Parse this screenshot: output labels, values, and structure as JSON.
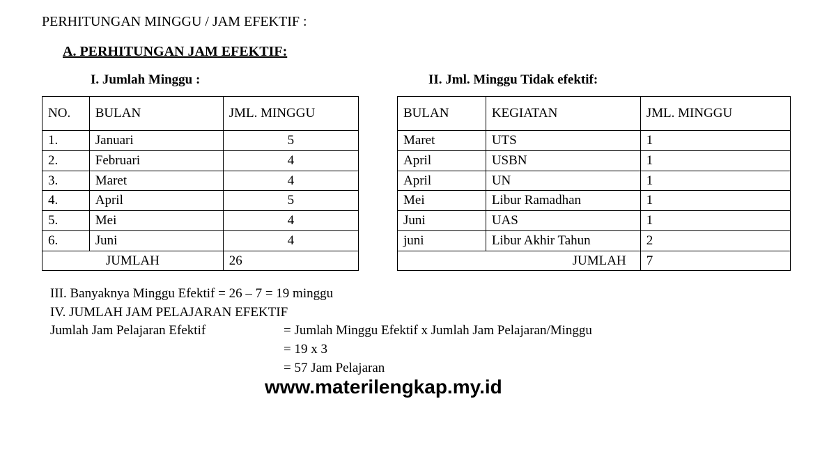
{
  "title": "PERHITUNGAN MINGGU / JAM EFEKTIF :",
  "sectionA": "A.    PERHITUNGAN JAM EFEKTIF:",
  "sub1": "I.   Jumlah Minggu        :",
  "sub2": "II. Jml. Minggu Tidak efektif:",
  "table1": {
    "headers": [
      "NO.",
      "BULAN",
      "JML. MINGGU"
    ],
    "rows": [
      [
        "1.",
        "Januari",
        "5"
      ],
      [
        "2.",
        "Februari",
        "4"
      ],
      [
        "3.",
        "Maret",
        "4"
      ],
      [
        "4.",
        "April",
        "5"
      ],
      [
        "5.",
        "Mei",
        "4"
      ],
      [
        "6.",
        "Juni",
        "4"
      ]
    ],
    "totalLabel": "JUMLAH",
    "totalValue": "26"
  },
  "table2": {
    "headers": [
      "BULAN",
      "KEGIATAN",
      "JML. MINGGU"
    ],
    "rows": [
      [
        "Maret",
        "UTS",
        "1"
      ],
      [
        "April",
        "USBN",
        "1"
      ],
      [
        "April",
        "UN",
        "1"
      ],
      [
        "Mei",
        "Libur Ramadhan",
        "1"
      ],
      [
        "Juni",
        "UAS",
        "1"
      ],
      [
        "juni",
        "Libur Akhir Tahun",
        "2"
      ]
    ],
    "totalLabel": "JUMLAH",
    "totalValue": "7"
  },
  "summary": {
    "line3": "III. Banyaknya Minggu Efektif =  26 –  7 = 19 minggu",
    "line4": "IV. JUMLAH JAM PELAJARAN EFEKTIF",
    "calcLabel": "Jumlah Jam Pelajaran Efektif",
    "calc1": "Jumlah Minggu Efektif x Jumlah Jam Pelajaran/Minggu",
    "calc2": "19 x 3",
    "calc3": "57 Jam Pelajaran"
  },
  "watermark": "www.materilengkap.my.id"
}
